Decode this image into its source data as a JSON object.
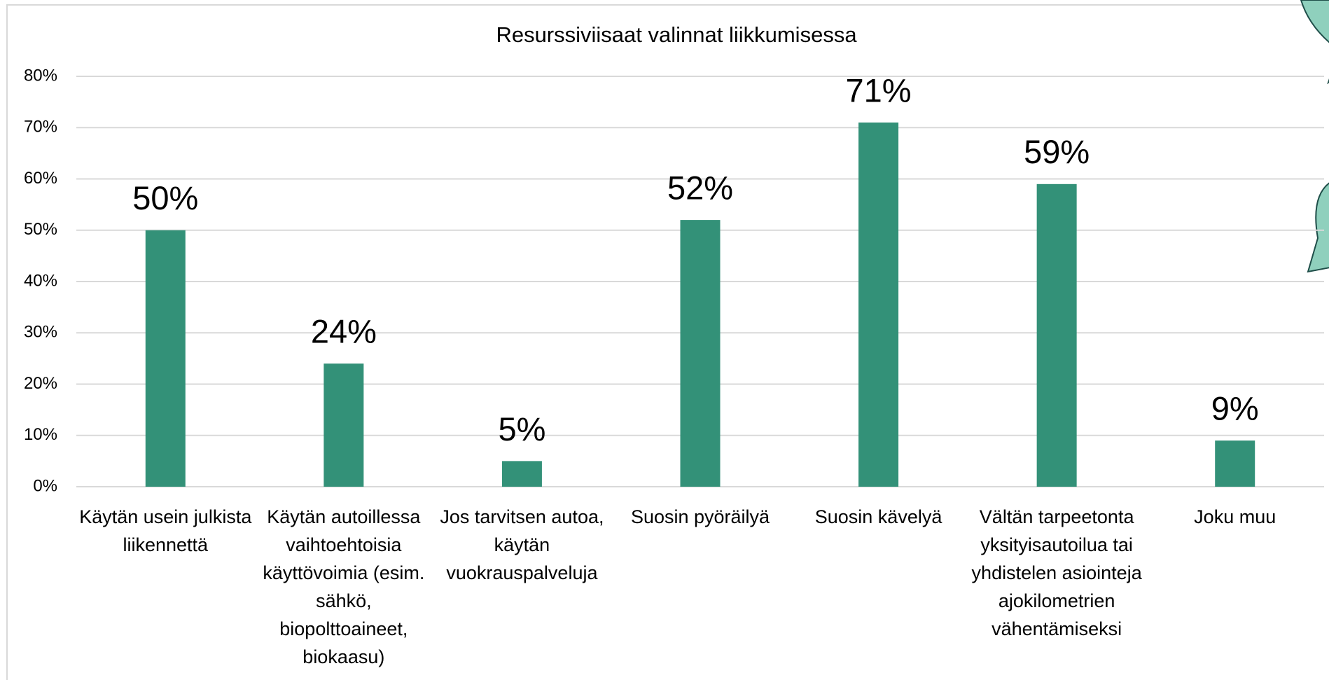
{
  "chart_data": {
    "type": "bar",
    "title": "Resurssiviisaat valinnat liikkumisessa",
    "categories": [
      "Käytän usein julkista liikennettä",
      "Käytän autoillessa vaihtoehtoisia käyttövoimia (esim. sähkö, biopolttoaineet, biokaasu)",
      "Jos tarvitsen autoa, käytän vuokrauspalveluja",
      "Suosin pyöräilyä",
      "Suosin kävelyä",
      "Vältän tarpeetonta yksityisautoilua tai yhdistelen asiointeja ajokilometrien vähentämiseksi",
      "Joku muu"
    ],
    "values": [
      50,
      24,
      5,
      52,
      71,
      59,
      9
    ],
    "value_labels": [
      "50%",
      "24%",
      "5%",
      "52%",
      "71%",
      "59%",
      "9%"
    ],
    "color": "#339178",
    "ylim": [
      0,
      80
    ],
    "yticks": [
      {
        "value": 0,
        "label": "0%"
      },
      {
        "value": 10,
        "label": "10%"
      },
      {
        "value": 20,
        "label": "20%"
      },
      {
        "value": 30,
        "label": "30%"
      },
      {
        "value": 40,
        "label": "40%"
      },
      {
        "value": 50,
        "label": "50%"
      },
      {
        "value": 60,
        "label": "60%"
      },
      {
        "value": 70,
        "label": "70%"
      },
      {
        "value": 80,
        "label": "80%"
      }
    ],
    "grid": true
  }
}
